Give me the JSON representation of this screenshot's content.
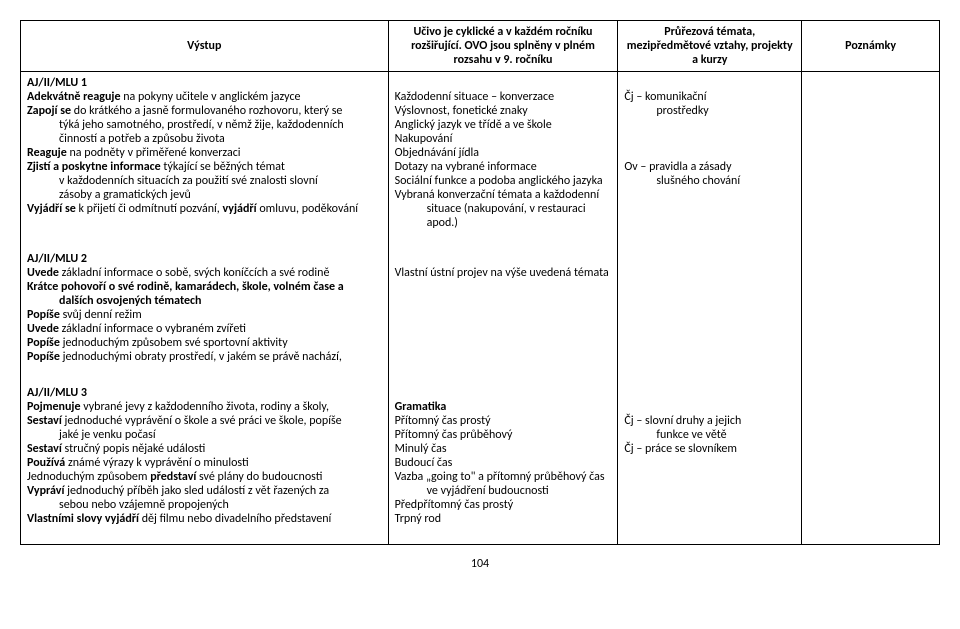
{
  "header": {
    "vystup": "Výstup",
    "ucivo": "Učivo je cyklické a v každém ročníku rozšiřující. OVO jsou splněny v plném rozsahu v 9. ročníku",
    "prurez": "Průřezová témata, mezipředmětové vztahy, projekty a kurzy",
    "poznamky": "Poznámky"
  },
  "mlu1": {
    "title": "AJ/II/MLU 1",
    "v1a": "Adekvátně reaguje",
    "v1b": " na pokyny učitele v anglickém jazyce",
    "v2a": "Zapojí se",
    "v2b": " do krátkého a jasně formulovaného rozhovoru, který se",
    "v2c": "týká jeho samotného, prostředí, v němž žije, každodenních",
    "v2d": "činností a potřeb a způsobu života",
    "v3a": "Reaguje",
    "v3b": " na podněty v přiměřené konverzaci",
    "v4a": "Zjistí a poskytne informace",
    "v4b": " týkající se běžných témat",
    "v4c": "v každodenních situacích za použití své znalosti slovní",
    "v4d": "zásoby a gramatických jevů",
    "v5a": "Vyjádří se",
    "v5b": " k přijetí či odmítnutí pozvání, ",
    "v5c": "vyjádří",
    "v5d": " omluvu, poděkování",
    "u1": "Každodenní situace – konverzace",
    "u2": "Výslovnost, fonetické znaky",
    "u3": "Anglický jazyk ve třídě a ve škole",
    "u4": "Nakupování",
    "u5": "Objednávání jídla",
    "u6": "Dotazy na vybrané informace",
    "u7": "Sociální funkce a podoba anglického jazyka",
    "u8": "Vybraná konverzační témata a každodenní",
    "u9": "situace (nakupování, v restauraci apod.)",
    "p1": "Čj – komunikační",
    "p1b": "prostředky",
    "p2": "Ov – pravidla a zásady",
    "p2b": "slušného chování"
  },
  "mlu2": {
    "title": "AJ/II/MLU 2",
    "v1a": "Uvede",
    "v1b": " základní informace o sobě, svých koníčcích a své rodině",
    "v2a": "Krátce pohovoří o své rodině, kamarádech, škole, volném čase a",
    "v2b": "dalších osvojených tématech",
    "v3a": "Popíše",
    "v3b": " svůj denní režim",
    "v4a": "Uvede",
    "v4b": " základní informace o vybraném zvířeti",
    "v5a": "Popíše",
    "v5b": " jednoduchým způsobem své sportovní aktivity",
    "v6a": "Popíše",
    "v6b": " jednoduchými obraty prostředí, v jakém se právě nachází,",
    "u1": "Vlastní ústní projev na výše uvedená témata"
  },
  "mlu3": {
    "title": "AJ/II/MLU 3",
    "v1a": "Pojmenuje",
    "v1b": " vybrané jevy z každodenního života, rodiny a školy,",
    "v2a": "Sestaví",
    "v2b": " jednoduché vyprávění o škole a své práci ve škole, popíše",
    "v2c": "jaké je venku počasí",
    "v3a": "Sestaví",
    "v3b": " stručný popis nějaké události",
    "v4a": "Používá",
    "v4b": " známé výrazy k vyprávění o minulosti",
    "v5a": "Jednoduchým způsobem ",
    "v5b": "představí",
    "v5c": " své plány do budoucnosti",
    "v6a": "Vypráví",
    "v6b": " jednoduchý příběh jako sled událostí z vět řazených za",
    "v6c": "sebou nebo vzájemně propojených",
    "v7a": "Vlastními slovy vyjádří",
    "v7b": " děj filmu nebo divadelního představení",
    "u1": "Gramatika",
    "u2": "Přítomný čas prostý",
    "u3": "Přítomný čas průběhový",
    "u4": "Minulý čas",
    "u5": "Budoucí čas",
    "u6": "Vazba „going to\" a přítomný průběhový čas",
    "u6b": "ve vyjádření budoucnosti",
    "u7": "Předpřítomný čas prostý",
    "u8": "Trpný rod",
    "p1": "Čj – slovní druhy a jejich",
    "p1b": "funkce ve větě",
    "p2": "Čj – práce se slovníkem"
  },
  "page": "104"
}
